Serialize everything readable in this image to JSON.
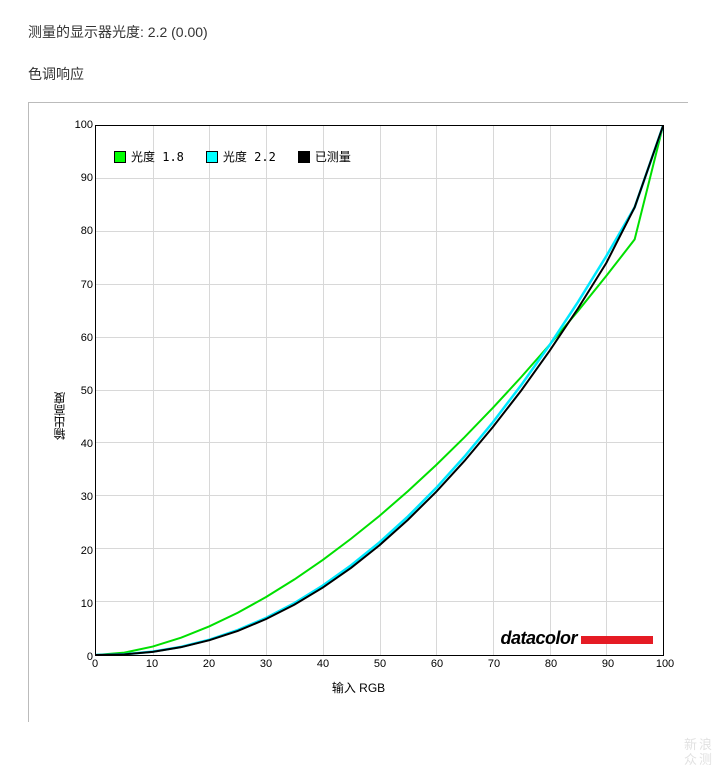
{
  "header": {
    "measured_gamma_label": "测量的显示器光度:  2.2 (0.00)",
    "section_title": "色调响应"
  },
  "chart": {
    "type": "line",
    "title": null,
    "xlabel": "输入 RGB",
    "ylabel": "输出高度",
    "xlim": [
      0,
      100
    ],
    "ylim": [
      0,
      100
    ],
    "xtick_step": 10,
    "ytick_step": 10,
    "xticks": [
      0,
      10,
      20,
      30,
      40,
      50,
      60,
      70,
      80,
      90,
      100
    ],
    "yticks": [
      0,
      10,
      20,
      30,
      40,
      50,
      60,
      70,
      80,
      90,
      100
    ],
    "label_fontsize": 12,
    "tick_fontsize": 11,
    "label_color": "#000000",
    "background_color": "#ffffff",
    "grid_color": "#d8d8d8",
    "axis_color": "#000000",
    "legend": {
      "position": "upper-left",
      "items": [
        {
          "label": "光度 1.8",
          "swatch_fill": "#00ff00",
          "swatch_border": "#000000"
        },
        {
          "label": "光度 2.2",
          "swatch_fill": "#00ffff",
          "swatch_border": "#000000"
        },
        {
          "label": "已测量",
          "swatch_fill": "#000000",
          "swatch_border": "#000000"
        }
      ]
    },
    "series": [
      {
        "name": "gamma_1_8",
        "color": "#00e000",
        "line_width": 2,
        "x": [
          0,
          5,
          10,
          15,
          20,
          25,
          30,
          35,
          40,
          45,
          50,
          55,
          60,
          65,
          70,
          75,
          80,
          85,
          90,
          95,
          100
        ],
        "y": [
          0,
          0.45,
          1.59,
          3.27,
          5.42,
          7.99,
          10.96,
          14.29,
          17.97,
          22.0,
          26.3,
          30.96,
          35.92,
          41.17,
          46.72,
          52.55,
          58.65,
          65.02,
          71.66,
          78.56,
          100
        ]
      },
      {
        "name": "gamma_2_2",
        "color": "#00e8ff",
        "line_width": 2.5,
        "x": [
          0,
          5,
          10,
          15,
          20,
          25,
          30,
          35,
          40,
          45,
          50,
          55,
          60,
          65,
          70,
          75,
          80,
          85,
          90,
          95,
          100
        ],
        "y": [
          0,
          0.14,
          0.63,
          1.54,
          2.89,
          4.71,
          7.02,
          9.82,
          13.13,
          16.96,
          21.3,
          26.17,
          31.58,
          37.52,
          44.0,
          51.03,
          58.6,
          66.72,
          75.4,
          84.63,
          100
        ]
      },
      {
        "name": "measured",
        "color": "#000000",
        "line_width": 2,
        "x": [
          0,
          5,
          10,
          15,
          20,
          25,
          30,
          35,
          40,
          45,
          50,
          55,
          60,
          65,
          70,
          75,
          80,
          85,
          90,
          95,
          100
        ],
        "y": [
          0,
          0.13,
          0.6,
          1.48,
          2.8,
          4.55,
          6.8,
          9.52,
          12.75,
          16.49,
          20.75,
          25.55,
          30.85,
          36.7,
          43.1,
          50.0,
          57.5,
          65.5,
          74.1,
          84.63,
          100
        ]
      }
    ],
    "brand": {
      "text": "datacolor",
      "bar_color": "#e51b24",
      "text_color": "#000000"
    }
  },
  "watermark": {
    "line1": "新浪",
    "line2": "众测"
  }
}
